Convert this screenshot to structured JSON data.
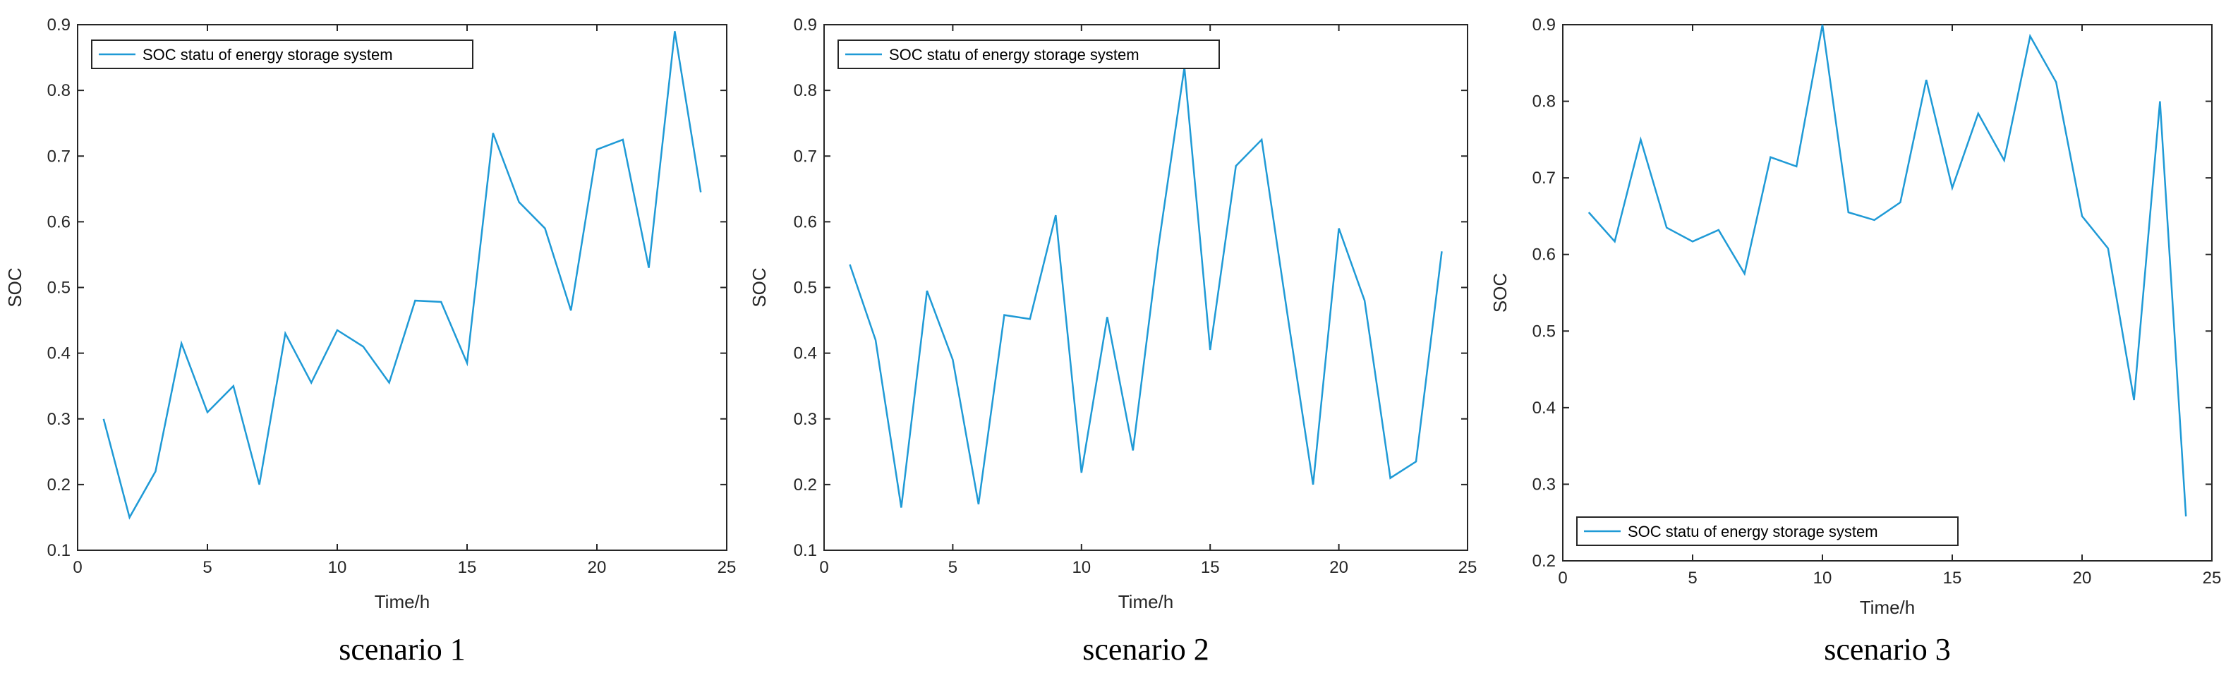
{
  "chart_data": [
    {
      "type": "line",
      "caption": "scenario 1",
      "xlabel": "Time/h",
      "ylabel": "SOC",
      "xlim": [
        0,
        25
      ],
      "ylim": [
        0.1,
        0.9
      ],
      "xticks": [
        "0",
        "5",
        "10",
        "15",
        "20",
        "25"
      ],
      "yticks": [
        "0.1",
        "0.2",
        "0.3",
        "0.4",
        "0.5",
        "0.6",
        "0.7",
        "0.8",
        "0.9"
      ],
      "grid": false,
      "legend_position": "top-left",
      "series": [
        {
          "name": "SOC statu of energy storage system",
          "color": "#1f9ad6",
          "x": [
            1,
            2,
            3,
            4,
            5,
            6,
            7,
            8,
            9,
            10,
            11,
            12,
            13,
            14,
            15,
            16,
            17,
            18,
            19,
            20,
            21,
            22,
            23,
            24
          ],
          "y": [
            0.3,
            0.15,
            0.22,
            0.415,
            0.31,
            0.35,
            0.2,
            0.43,
            0.355,
            0.435,
            0.41,
            0.355,
            0.48,
            0.478,
            0.385,
            0.735,
            0.63,
            0.59,
            0.465,
            0.71,
            0.725,
            0.53,
            0.89,
            0.645
          ]
        }
      ]
    },
    {
      "type": "line",
      "caption": "scenario 2",
      "xlabel": "Time/h",
      "ylabel": "SOC",
      "xlim": [
        0,
        25
      ],
      "ylim": [
        0.1,
        0.9
      ],
      "xticks": [
        "0",
        "5",
        "10",
        "15",
        "20",
        "25"
      ],
      "yticks": [
        "0.1",
        "0.2",
        "0.3",
        "0.4",
        "0.5",
        "0.6",
        "0.7",
        "0.8",
        "0.9"
      ],
      "grid": false,
      "legend_position": "top-left",
      "series": [
        {
          "name": "SOC statu of energy storage system",
          "color": "#1f9ad6",
          "x": [
            1,
            2,
            3,
            4,
            5,
            6,
            7,
            8,
            9,
            10,
            11,
            12,
            13,
            14,
            15,
            16,
            17,
            18,
            19,
            20,
            21,
            22,
            23,
            24
          ],
          "y": [
            0.535,
            0.42,
            0.165,
            0.495,
            0.39,
            0.17,
            0.458,
            0.452,
            0.61,
            0.218,
            0.455,
            0.252,
            0.565,
            0.835,
            0.405,
            0.685,
            0.725,
            0.46,
            0.2,
            0.59,
            0.48,
            0.21,
            0.235,
            0.555
          ]
        }
      ]
    },
    {
      "type": "line",
      "caption": "scenario 3",
      "xlabel": "Time/h",
      "ylabel": "SOC",
      "xlim": [
        0,
        25
      ],
      "ylim": [
        0.2,
        0.9
      ],
      "xticks": [
        "0",
        "5",
        "10",
        "15",
        "20",
        "25"
      ],
      "yticks": [
        "0.2",
        "0.3",
        "0.4",
        "0.5",
        "0.6",
        "0.7",
        "0.8",
        "0.9"
      ],
      "grid": false,
      "legend_position": "bottom-left",
      "series": [
        {
          "name": "SOC statu of energy storage system",
          "color": "#1f9ad6",
          "x": [
            1,
            2,
            3,
            4,
            5,
            6,
            7,
            8,
            9,
            10,
            11,
            12,
            13,
            14,
            15,
            16,
            17,
            18,
            19,
            20,
            21,
            22,
            23,
            24
          ],
          "y": [
            0.655,
            0.617,
            0.75,
            0.635,
            0.617,
            0.632,
            0.575,
            0.727,
            0.715,
            0.9,
            0.655,
            0.645,
            0.668,
            0.828,
            0.687,
            0.784,
            0.723,
            0.885,
            0.825,
            0.65,
            0.608,
            0.41,
            0.8,
            0.258
          ]
        }
      ]
    }
  ]
}
